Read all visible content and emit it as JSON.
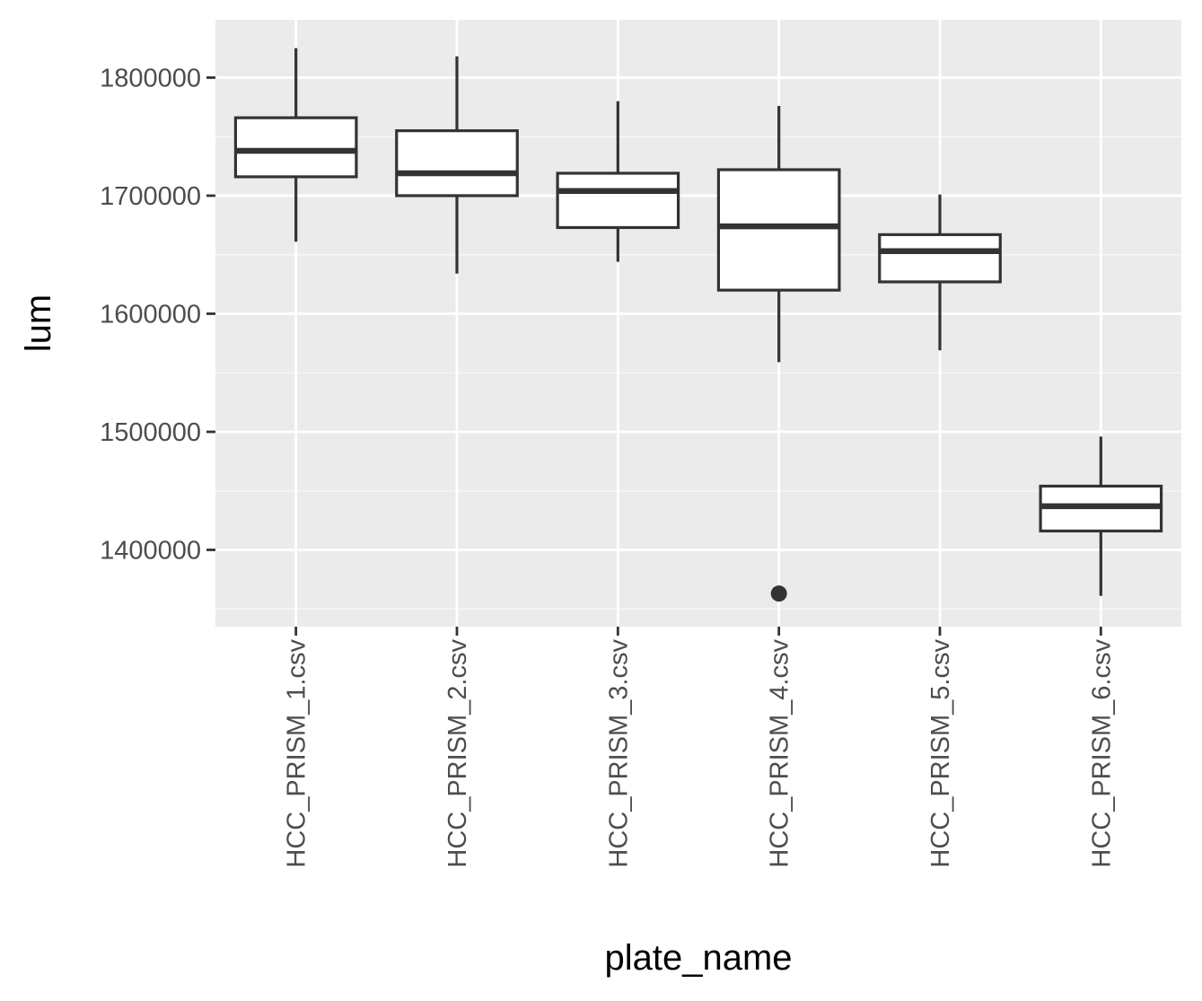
{
  "chart_data": {
    "type": "boxplot",
    "xlabel": "plate_name",
    "ylabel": "lum",
    "categories": [
      "HCC_PRISM_1.csv",
      "HCC_PRISM_2.csv",
      "HCC_PRISM_3.csv",
      "HCC_PRISM_4.csv",
      "HCC_PRISM_5.csv",
      "HCC_PRISM_6.csv"
    ],
    "boxes": [
      {
        "category": "HCC_PRISM_1.csv",
        "whisker_low": 1661000,
        "q1": 1716000,
        "median": 1738000,
        "q3": 1766000,
        "whisker_high": 1825000,
        "outliers": []
      },
      {
        "category": "HCC_PRISM_2.csv",
        "whisker_low": 1634000,
        "q1": 1700000,
        "median": 1719000,
        "q3": 1755000,
        "whisker_high": 1818000,
        "outliers": []
      },
      {
        "category": "HCC_PRISM_3.csv",
        "whisker_low": 1644000,
        "q1": 1673000,
        "median": 1704000,
        "q3": 1719000,
        "whisker_high": 1780000,
        "outliers": []
      },
      {
        "category": "HCC_PRISM_4.csv",
        "whisker_low": 1559000,
        "q1": 1620000,
        "median": 1674000,
        "q3": 1722000,
        "whisker_high": 1776000,
        "outliers": [
          1363000
        ]
      },
      {
        "category": "HCC_PRISM_5.csv",
        "whisker_low": 1569000,
        "q1": 1627000,
        "median": 1653000,
        "q3": 1667000,
        "whisker_high": 1701000,
        "outliers": []
      },
      {
        "category": "HCC_PRISM_6.csv",
        "whisker_low": 1361000,
        "q1": 1416000,
        "median": 1437000,
        "q3": 1454000,
        "whisker_high": 1496000,
        "outliers": []
      }
    ],
    "yticks": [
      1400000,
      1500000,
      1600000,
      1700000,
      1800000
    ],
    "ytick_labels": [
      "1400000",
      "1500000",
      "1600000",
      "1700000",
      "1800000"
    ],
    "ylim": [
      1335000,
      1849000
    ],
    "grid": true,
    "colors": {
      "panel_background": "#ebebeb",
      "grid_major": "#ffffff",
      "grid_minor": "#f7f7f7",
      "box_line": "#333333",
      "box_fill": "#ffffff",
      "tick_text": "#4d4d4d"
    }
  }
}
